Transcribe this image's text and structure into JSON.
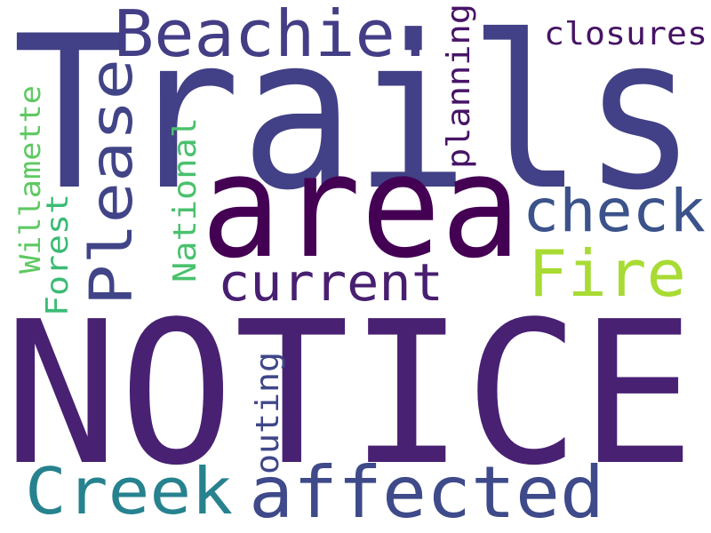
{
  "word_cloud": {
    "background": "#ffffff",
    "words": [
      {
        "id": "trails",
        "text": "Trails",
        "color": "#424086",
        "orientation": "horizontal"
      },
      {
        "id": "notice",
        "text": "NOTICE",
        "color": "#482173",
        "orientation": "horizontal"
      },
      {
        "id": "area",
        "text": "area",
        "color": "#440154",
        "orientation": "horizontal"
      },
      {
        "id": "affected",
        "text": "affected",
        "color": "#3e4a89",
        "orientation": "horizontal"
      },
      {
        "id": "beachie",
        "text": "Beachie.",
        "color": "#433e85",
        "orientation": "horizontal"
      },
      {
        "id": "creek",
        "text": "Creek",
        "color": "#26828e",
        "orientation": "horizontal"
      },
      {
        "id": "please",
        "text": "Please",
        "color": "#414487",
        "orientation": "vertical"
      },
      {
        "id": "check",
        "text": "check",
        "color": "#3b528b",
        "orientation": "horizontal"
      },
      {
        "id": "fire",
        "text": "Fire",
        "color": "#a8db34",
        "orientation": "horizontal"
      },
      {
        "id": "current",
        "text": "current",
        "color": "#481f70",
        "orientation": "horizontal"
      },
      {
        "id": "closures",
        "text": "closures",
        "color": "#471365",
        "orientation": "horizontal"
      },
      {
        "id": "planning",
        "text": "planning",
        "color": "#481467",
        "orientation": "vertical"
      },
      {
        "id": "outing",
        "text": "outing",
        "color": "#3f4788",
        "orientation": "vertical"
      },
      {
        "id": "national",
        "text": "National",
        "color": "#4ac16d",
        "orientation": "vertical"
      },
      {
        "id": "willamette",
        "text": "Willamette",
        "color": "#5ec962",
        "orientation": "vertical"
      },
      {
        "id": "forest",
        "text": "Forest",
        "color": "#3bbb75",
        "orientation": "vertical"
      }
    ]
  }
}
